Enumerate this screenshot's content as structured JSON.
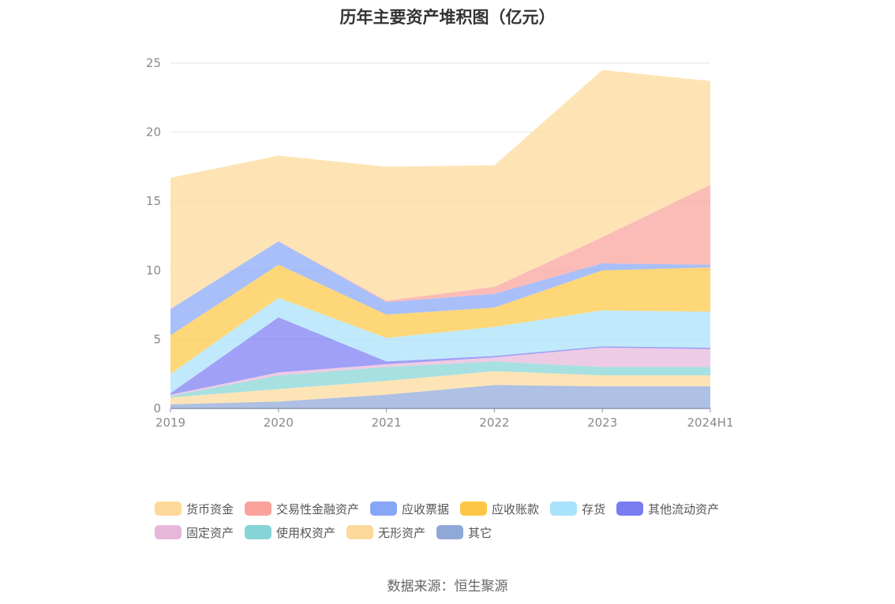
{
  "chart_data": {
    "type": "area",
    "stacked": true,
    "title": "历年主要资产堆积图（亿元）",
    "source": "数据来源：恒生聚源",
    "x": [
      "2019",
      "2020",
      "2021",
      "2022",
      "2023",
      "2024H1"
    ],
    "ylim": [
      0,
      25
    ],
    "yticks": [
      "0",
      "5",
      "10",
      "15",
      "20",
      "25"
    ],
    "grid": true,
    "legend_position": "bottom",
    "series": [
      {
        "name": "其它",
        "color": "#8fa8d8",
        "values": [
          0.3,
          0.5,
          1.0,
          1.7,
          1.6,
          1.6
        ]
      },
      {
        "name": "无形资产",
        "color": "#fcd99a",
        "values": [
          0.5,
          0.9,
          1.0,
          1.0,
          0.8,
          0.8
        ]
      },
      {
        "name": "使用权资产",
        "color": "#85d4d6",
        "values": [
          0.1,
          1.0,
          1.0,
          0.7,
          0.6,
          0.6
        ]
      },
      {
        "name": "固定资产",
        "color": "#e7b7da",
        "values": [
          0.1,
          0.2,
          0.2,
          0.3,
          1.4,
          1.3
        ]
      },
      {
        "name": "其他流动资产",
        "color": "#7a7cf2",
        "values": [
          0.1,
          4.0,
          0.2,
          0.1,
          0.1,
          0.1
        ]
      },
      {
        "name": "存货",
        "color": "#a8e2fb",
        "values": [
          1.4,
          1.4,
          1.7,
          2.1,
          2.6,
          2.6
        ]
      },
      {
        "name": "应收账款",
        "color": "#fdc745",
        "values": [
          2.8,
          2.4,
          1.7,
          1.4,
          2.9,
          3.2
        ]
      },
      {
        "name": "应收票据",
        "color": "#86a6f8",
        "values": [
          1.9,
          1.7,
          0.9,
          1.0,
          0.5,
          0.2
        ]
      },
      {
        "name": "交易性金融资产",
        "color": "#f9a29c",
        "values": [
          0.0,
          0.0,
          0.1,
          0.5,
          1.9,
          5.8
        ]
      },
      {
        "name": "货币资金",
        "color": "#fdd999",
        "values": [
          9.5,
          6.2,
          9.7,
          8.8,
          12.1,
          7.5
        ]
      }
    ]
  }
}
